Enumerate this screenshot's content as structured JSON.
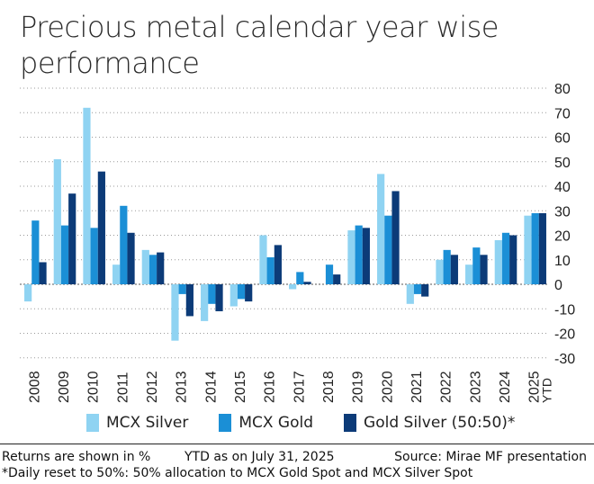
{
  "title": "Precious metal calendar year wise performance",
  "chart_data": {
    "type": "bar",
    "categories": [
      "2008",
      "2009",
      "2010",
      "2011",
      "2012",
      "2013",
      "2014",
      "2015",
      "2016",
      "2017",
      "2018",
      "2019",
      "2020",
      "2021",
      "2022",
      "2023",
      "2024",
      "2025"
    ],
    "category_sublabels": {
      "2025": "YTD"
    },
    "series": [
      {
        "name": "MCX Silver",
        "color": "#8fd3f2",
        "values": [
          -7,
          51,
          72,
          8,
          14,
          -23,
          -15,
          -9,
          20,
          -2,
          0,
          22,
          45,
          -8,
          10,
          8,
          18,
          28
        ]
      },
      {
        "name": "MCX Gold",
        "color": "#1b8fd6",
        "values": [
          26,
          24,
          23,
          32,
          12,
          -4,
          -8,
          -6,
          11,
          5,
          8,
          24,
          28,
          -4,
          14,
          15,
          21,
          29
        ]
      },
      {
        "name": "Gold Silver (50:50)*",
        "color": "#0c3b78",
        "values": [
          9,
          37,
          46,
          21,
          13,
          -13,
          -11,
          -7,
          16,
          1,
          4,
          23,
          38,
          -5,
          12,
          12,
          20,
          29
        ]
      }
    ],
    "ylim": [
      -30,
      80
    ],
    "yticks": [
      80,
      70,
      60,
      50,
      40,
      30,
      20,
      10,
      0,
      -10,
      -20,
      -30
    ],
    "y_axis_position": "right",
    "grid": "horizontal dotted",
    "legend_position": "bottom"
  },
  "footer": {
    "returns_note": "Returns are shown in %",
    "ytd_note": "YTD as on July 31, 2025",
    "source": "Source: Mirae MF presentation",
    "daily_reset_note": "*Daily reset to 50%: 50% allocation to MCX Gold Spot and MCX Silver Spot"
  }
}
